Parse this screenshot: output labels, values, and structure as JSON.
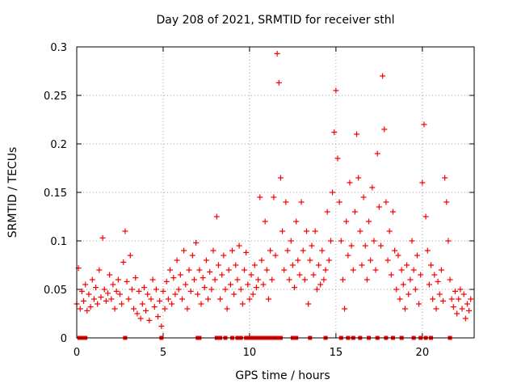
{
  "chart_data": {
    "type": "scatter",
    "title": "Day 208 of 2021, SRMTID for receiver sthl",
    "xlabel": "GPS time / hours",
    "ylabel": "SRMTID / TECUs",
    "xlim": [
      0,
      23
    ],
    "ylim": [
      0,
      0.3
    ],
    "xticks": [
      0,
      5,
      10,
      15,
      20
    ],
    "yticks": [
      0,
      0.05,
      0.1,
      0.15,
      0.2,
      0.25,
      0.3
    ],
    "grid": true,
    "marker": "+",
    "color": "#ff0000",
    "series": [
      {
        "values": [
          [
            0.0,
            0.035
          ],
          [
            0.1,
            0.072
          ],
          [
            0.2,
            0.03
          ],
          [
            0.3,
            0.048
          ],
          [
            0.4,
            0.038
          ],
          [
            0.5,
            0.055
          ],
          [
            0.6,
            0.028
          ],
          [
            0.7,
            0.045
          ],
          [
            0.8,
            0.032
          ],
          [
            0.9,
            0.06
          ],
          [
            1.0,
            0.04
          ],
          [
            1.1,
            0.052
          ],
          [
            1.2,
            0.035
          ],
          [
            1.3,
            0.07
          ],
          [
            1.4,
            0.042
          ],
          [
            1.5,
            0.103
          ],
          [
            1.6,
            0.05
          ],
          [
            1.7,
            0.038
          ],
          [
            1.8,
            0.046
          ],
          [
            1.9,
            0.065
          ],
          [
            2.0,
            0.04
          ],
          [
            2.1,
            0.055
          ],
          [
            2.2,
            0.03
          ],
          [
            2.3,
            0.048
          ],
          [
            2.4,
            0.06
          ],
          [
            2.5,
            0.045
          ],
          [
            2.6,
            0.035
          ],
          [
            2.7,
            0.078
          ],
          [
            2.8,
            0.11
          ],
          [
            2.9,
            0.058
          ],
          [
            3.0,
            0.04
          ],
          [
            3.1,
            0.085
          ],
          [
            3.2,
            0.05
          ],
          [
            3.3,
            0.03
          ],
          [
            3.4,
            0.062
          ],
          [
            3.5,
            0.025
          ],
          [
            3.6,
            0.048
          ],
          [
            3.7,
            0.02
          ],
          [
            3.8,
            0.035
          ],
          [
            3.9,
            0.052
          ],
          [
            4.0,
            0.028
          ],
          [
            4.1,
            0.045
          ],
          [
            4.2,
            0.018
          ],
          [
            4.3,
            0.04
          ],
          [
            4.4,
            0.06
          ],
          [
            4.5,
            0.032
          ],
          [
            4.6,
            0.05
          ],
          [
            4.7,
            0.022
          ],
          [
            4.8,
            0.038
          ],
          [
            4.9,
            0.012
          ],
          [
            5.0,
            0.048
          ],
          [
            5.1,
            0.03
          ],
          [
            5.2,
            0.058
          ],
          [
            5.3,
            0.04
          ],
          [
            5.4,
            0.07
          ],
          [
            5.5,
            0.035
          ],
          [
            5.6,
            0.062
          ],
          [
            5.7,
            0.045
          ],
          [
            5.8,
            0.08
          ],
          [
            5.9,
            0.05
          ],
          [
            6.0,
            0.065
          ],
          [
            6.1,
            0.04
          ],
          [
            6.2,
            0.09
          ],
          [
            6.3,
            0.055
          ],
          [
            6.4,
            0.03
          ],
          [
            6.5,
            0.07
          ],
          [
            6.6,
            0.048
          ],
          [
            6.7,
            0.085
          ],
          [
            6.8,
            0.06
          ],
          [
            6.9,
            0.098
          ],
          [
            7.0,
            0.045
          ],
          [
            7.1,
            0.07
          ],
          [
            7.2,
            0.035
          ],
          [
            7.3,
            0.062
          ],
          [
            7.4,
            0.052
          ],
          [
            7.5,
            0.08
          ],
          [
            7.6,
            0.04
          ],
          [
            7.7,
            0.068
          ],
          [
            7.8,
            0.05
          ],
          [
            7.9,
            0.09
          ],
          [
            8.0,
            0.06
          ],
          [
            8.1,
            0.125
          ],
          [
            8.2,
            0.075
          ],
          [
            8.3,
            0.04
          ],
          [
            8.4,
            0.065
          ],
          [
            8.5,
            0.085
          ],
          [
            8.6,
            0.05
          ],
          [
            8.7,
            0.03
          ],
          [
            8.8,
            0.07
          ],
          [
            8.9,
            0.055
          ],
          [
            9.0,
            0.09
          ],
          [
            9.1,
            0.045
          ],
          [
            9.2,
            0.075
          ],
          [
            9.3,
            0.06
          ],
          [
            9.4,
            0.095
          ],
          [
            9.5,
            0.05
          ],
          [
            9.6,
            0.035
          ],
          [
            9.7,
            0.07
          ],
          [
            9.8,
            0.088
          ],
          [
            9.9,
            0.055
          ],
          [
            10.0,
            0.04
          ],
          [
            10.1,
            0.065
          ],
          [
            10.2,
            0.045
          ],
          [
            10.3,
            0.075
          ],
          [
            10.4,
            0.052
          ],
          [
            10.5,
            0.06
          ],
          [
            10.6,
            0.145
          ],
          [
            10.7,
            0.08
          ],
          [
            10.8,
            0.055
          ],
          [
            10.9,
            0.12
          ],
          [
            11.0,
            0.07
          ],
          [
            11.1,
            0.04
          ],
          [
            11.2,
            0.09
          ],
          [
            11.3,
            0.06
          ],
          [
            11.4,
            0.145
          ],
          [
            11.5,
            0.085
          ],
          [
            11.6,
            0.293
          ],
          [
            11.7,
            0.263
          ],
          [
            11.8,
            0.165
          ],
          [
            11.9,
            0.11
          ],
          [
            12.0,
            0.07
          ],
          [
            12.1,
            0.14
          ],
          [
            12.2,
            0.09
          ],
          [
            12.3,
            0.06
          ],
          [
            12.4,
            0.1
          ],
          [
            12.5,
            0.075
          ],
          [
            12.6,
            0.052
          ],
          [
            12.7,
            0.12
          ],
          [
            12.8,
            0.08
          ],
          [
            12.9,
            0.065
          ],
          [
            13.0,
            0.14
          ],
          [
            13.1,
            0.09
          ],
          [
            13.2,
            0.06
          ],
          [
            13.3,
            0.11
          ],
          [
            13.4,
            0.035
          ],
          [
            13.5,
            0.08
          ],
          [
            13.6,
            0.095
          ],
          [
            13.7,
            0.065
          ],
          [
            13.8,
            0.11
          ],
          [
            13.9,
            0.05
          ],
          [
            14.0,
            0.075
          ],
          [
            14.1,
            0.055
          ],
          [
            14.2,
            0.09
          ],
          [
            14.3,
            0.06
          ],
          [
            14.4,
            0.07
          ],
          [
            14.5,
            0.13
          ],
          [
            14.6,
            0.08
          ],
          [
            14.7,
            0.1
          ],
          [
            14.8,
            0.15
          ],
          [
            14.9,
            0.212
          ],
          [
            15.0,
            0.255
          ],
          [
            15.1,
            0.185
          ],
          [
            15.2,
            0.14
          ],
          [
            15.3,
            0.1
          ],
          [
            15.4,
            0.06
          ],
          [
            15.5,
            0.03
          ],
          [
            15.6,
            0.12
          ],
          [
            15.7,
            0.085
          ],
          [
            15.8,
            0.16
          ],
          [
            15.9,
            0.095
          ],
          [
            16.0,
            0.07
          ],
          [
            16.1,
            0.13
          ],
          [
            16.2,
            0.21
          ],
          [
            16.3,
            0.165
          ],
          [
            16.4,
            0.11
          ],
          [
            16.5,
            0.075
          ],
          [
            16.6,
            0.145
          ],
          [
            16.7,
            0.095
          ],
          [
            16.8,
            0.06
          ],
          [
            16.9,
            0.12
          ],
          [
            17.0,
            0.08
          ],
          [
            17.1,
            0.155
          ],
          [
            17.2,
            0.1
          ],
          [
            17.3,
            0.07
          ],
          [
            17.4,
            0.19
          ],
          [
            17.5,
            0.135
          ],
          [
            17.6,
            0.095
          ],
          [
            17.7,
            0.27
          ],
          [
            17.8,
            0.215
          ],
          [
            17.9,
            0.14
          ],
          [
            18.0,
            0.08
          ],
          [
            18.1,
            0.11
          ],
          [
            18.2,
            0.065
          ],
          [
            18.3,
            0.13
          ],
          [
            18.4,
            0.09
          ],
          [
            18.5,
            0.05
          ],
          [
            18.6,
            0.085
          ],
          [
            18.7,
            0.04
          ],
          [
            18.8,
            0.07
          ],
          [
            18.9,
            0.055
          ],
          [
            19.0,
            0.03
          ],
          [
            19.1,
            0.075
          ],
          [
            19.2,
            0.045
          ],
          [
            19.3,
            0.06
          ],
          [
            19.4,
            0.1
          ],
          [
            19.5,
            0.07
          ],
          [
            19.6,
            0.05
          ],
          [
            19.7,
            0.085
          ],
          [
            19.8,
            0.035
          ],
          [
            19.9,
            0.065
          ],
          [
            20.0,
            0.16
          ],
          [
            20.1,
            0.22
          ],
          [
            20.2,
            0.125
          ],
          [
            20.3,
            0.09
          ],
          [
            20.4,
            0.055
          ],
          [
            20.5,
            0.075
          ],
          [
            20.6,
            0.04
          ],
          [
            20.7,
            0.065
          ],
          [
            20.8,
            0.03
          ],
          [
            20.9,
            0.058
          ],
          [
            21.0,
            0.045
          ],
          [
            21.1,
            0.07
          ],
          [
            21.2,
            0.038
          ],
          [
            21.3,
            0.165
          ],
          [
            21.4,
            0.14
          ],
          [
            21.5,
            0.1
          ],
          [
            21.6,
            0.06
          ],
          [
            21.7,
            0.04
          ],
          [
            21.8,
            0.032
          ],
          [
            21.9,
            0.048
          ],
          [
            22.0,
            0.025
          ],
          [
            22.1,
            0.04
          ],
          [
            22.2,
            0.05
          ],
          [
            22.3,
            0.03
          ],
          [
            22.4,
            0.045
          ],
          [
            22.5,
            0.02
          ],
          [
            22.6,
            0.035
          ],
          [
            22.7,
            0.028
          ],
          [
            22.8,
            0.04
          ]
        ]
      },
      {
        "values": [
          [
            0.15,
            0
          ],
          [
            0.35,
            0
          ],
          [
            0.5,
            0
          ],
          [
            2.8,
            0
          ],
          [
            4.9,
            0
          ],
          [
            7.0,
            0
          ],
          [
            7.1,
            0
          ],
          [
            8.1,
            0
          ],
          [
            8.3,
            0
          ],
          [
            8.6,
            0
          ],
          [
            9.0,
            0
          ],
          [
            9.3,
            0
          ],
          [
            9.5,
            0
          ],
          [
            9.8,
            0
          ],
          [
            10.0,
            0
          ],
          [
            10.2,
            0
          ],
          [
            10.4,
            0
          ],
          [
            10.6,
            0
          ],
          [
            10.8,
            0
          ],
          [
            11.0,
            0
          ],
          [
            11.2,
            0
          ],
          [
            11.4,
            0
          ],
          [
            11.6,
            0
          ],
          [
            11.8,
            0
          ],
          [
            12.5,
            0
          ],
          [
            12.7,
            0
          ],
          [
            13.5,
            0
          ],
          [
            14.4,
            0
          ],
          [
            15.3,
            0
          ],
          [
            15.7,
            0
          ],
          [
            16.0,
            0
          ],
          [
            16.4,
            0
          ],
          [
            16.9,
            0
          ],
          [
            17.4,
            0
          ],
          [
            17.9,
            0
          ],
          [
            18.3,
            0
          ],
          [
            18.8,
            0
          ],
          [
            19.5,
            0
          ],
          [
            19.9,
            0
          ],
          [
            20.2,
            0
          ],
          [
            20.5,
            0
          ],
          [
            21.6,
            0
          ]
        ]
      }
    ]
  }
}
